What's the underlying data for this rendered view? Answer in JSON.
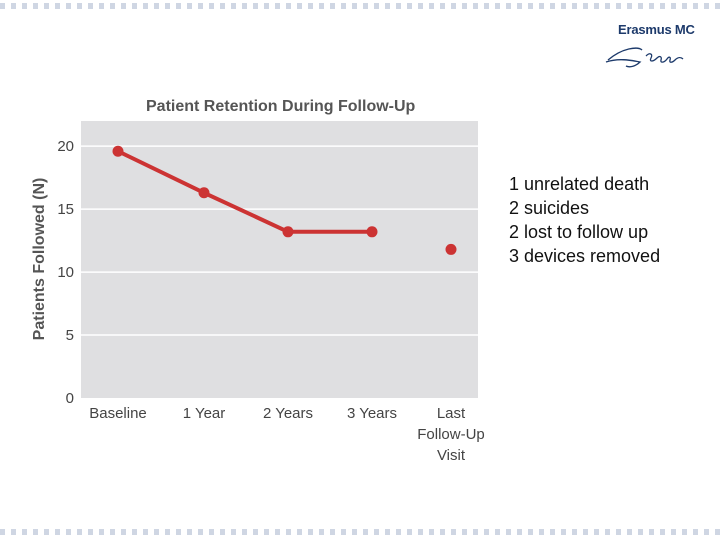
{
  "logo": {
    "text": "Erasmus MC",
    "signature": "Erafus",
    "color": "#1d3a6b"
  },
  "chart_data": {
    "type": "line",
    "title": "Patient Retention During Follow-Up",
    "xlabel": "",
    "ylabel": "Patients Followed (N)",
    "categories": [
      "Baseline",
      "1 Year",
      "2 Years",
      "3 Years",
      "Last Follow-Up Visit"
    ],
    "category_lines": [
      [
        "Baseline"
      ],
      [
        "1 Year"
      ],
      [
        "2 Years"
      ],
      [
        "3 Years"
      ],
      [
        "Last",
        "Follow-Up",
        "Visit"
      ]
    ],
    "series": [
      {
        "values": [
          19.6,
          16.3,
          13.2,
          13.2,
          11.8
        ],
        "color": "#cc3333",
        "connected_points": 4
      }
    ],
    "ylim": [
      0,
      22
    ],
    "yticks": [
      0,
      5,
      10,
      15,
      20
    ],
    "grid": true,
    "plot_background": "#dfdfe1",
    "gridline_color": "#ffffff"
  },
  "notes": [
    "1 unrelated death",
    "2 suicides",
    "2 lost to follow up",
    "3 devices removed"
  ]
}
